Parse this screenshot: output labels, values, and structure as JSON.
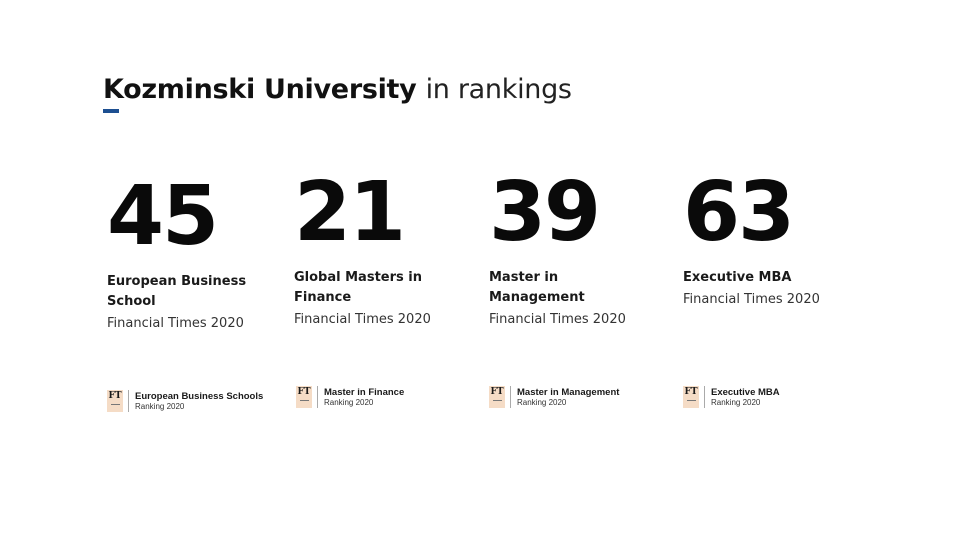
{
  "header": {
    "title_bold": "Kozminski University",
    "title_light": "in rankings",
    "accent_color": "#1d4f91"
  },
  "stats": [
    {
      "rank": "45",
      "label_line1": "European Business",
      "label_line2": "School",
      "source": "Financial Times 2020",
      "badge_logo": "FT",
      "badge_title": "European Business Schools",
      "badge_sub": "Ranking 2020"
    },
    {
      "rank": "21",
      "label_line1": "Global Masters in",
      "label_line2": "Finance",
      "source": "Financial Times 2020",
      "badge_logo": "FT",
      "badge_title": "Master in Finance",
      "badge_sub": "Ranking 2020"
    },
    {
      "rank": "39",
      "label_line1": "Master in",
      "label_line2": "Management",
      "source": "Financial Times 2020",
      "badge_logo": "FT",
      "badge_title": "Master in Management",
      "badge_sub": "Ranking 2020"
    },
    {
      "rank": "63",
      "label_line1": "Executive MBA",
      "source": "Financial Times 2020",
      "badge_logo": "FT",
      "badge_title": "Executive MBA",
      "badge_sub": "Ranking 2020"
    }
  ]
}
